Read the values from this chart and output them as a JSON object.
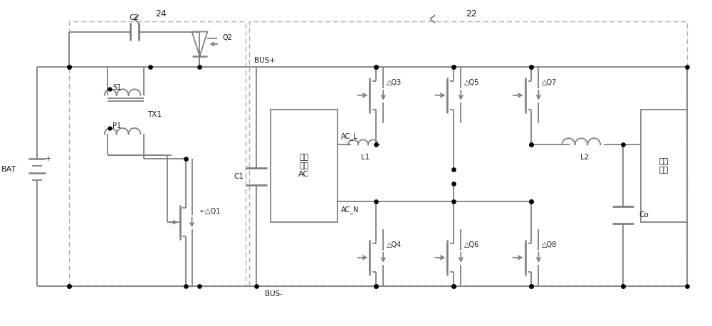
{
  "bg_color": "#ffffff",
  "line_color": "#808080",
  "line_width": 1.3,
  "dot_color": "#000000",
  "text_color": "#1a1a1a",
  "dashed_color": "#aaaaaa",
  "label_24": "24",
  "label_22": "22",
  "label_BUS_plus": "BUS+",
  "label_BUS_minus": "BUS-",
  "label_BAT": "BAT",
  "label_C2": "C2",
  "label_C1": "C1",
  "label_Co": "Co",
  "label_L1": "L1",
  "label_L2": "L2",
  "label_TX1": "TX1",
  "label_S1": "S1",
  "label_P1": "P1",
  "label_Q1": "Q1",
  "label_Q2": "Q2",
  "label_Q3": "Q3",
  "label_Q4": "Q4",
  "label_Q5": "Q5",
  "label_Q6": "Q6",
  "label_Q7": "Q7",
  "label_Q8": "Q8",
  "label_AC_L": "AC_L",
  "label_AC_N": "AC_N",
  "label_AC_box": "交流\n电源\nAC",
  "label_output": "输出\n负载"
}
